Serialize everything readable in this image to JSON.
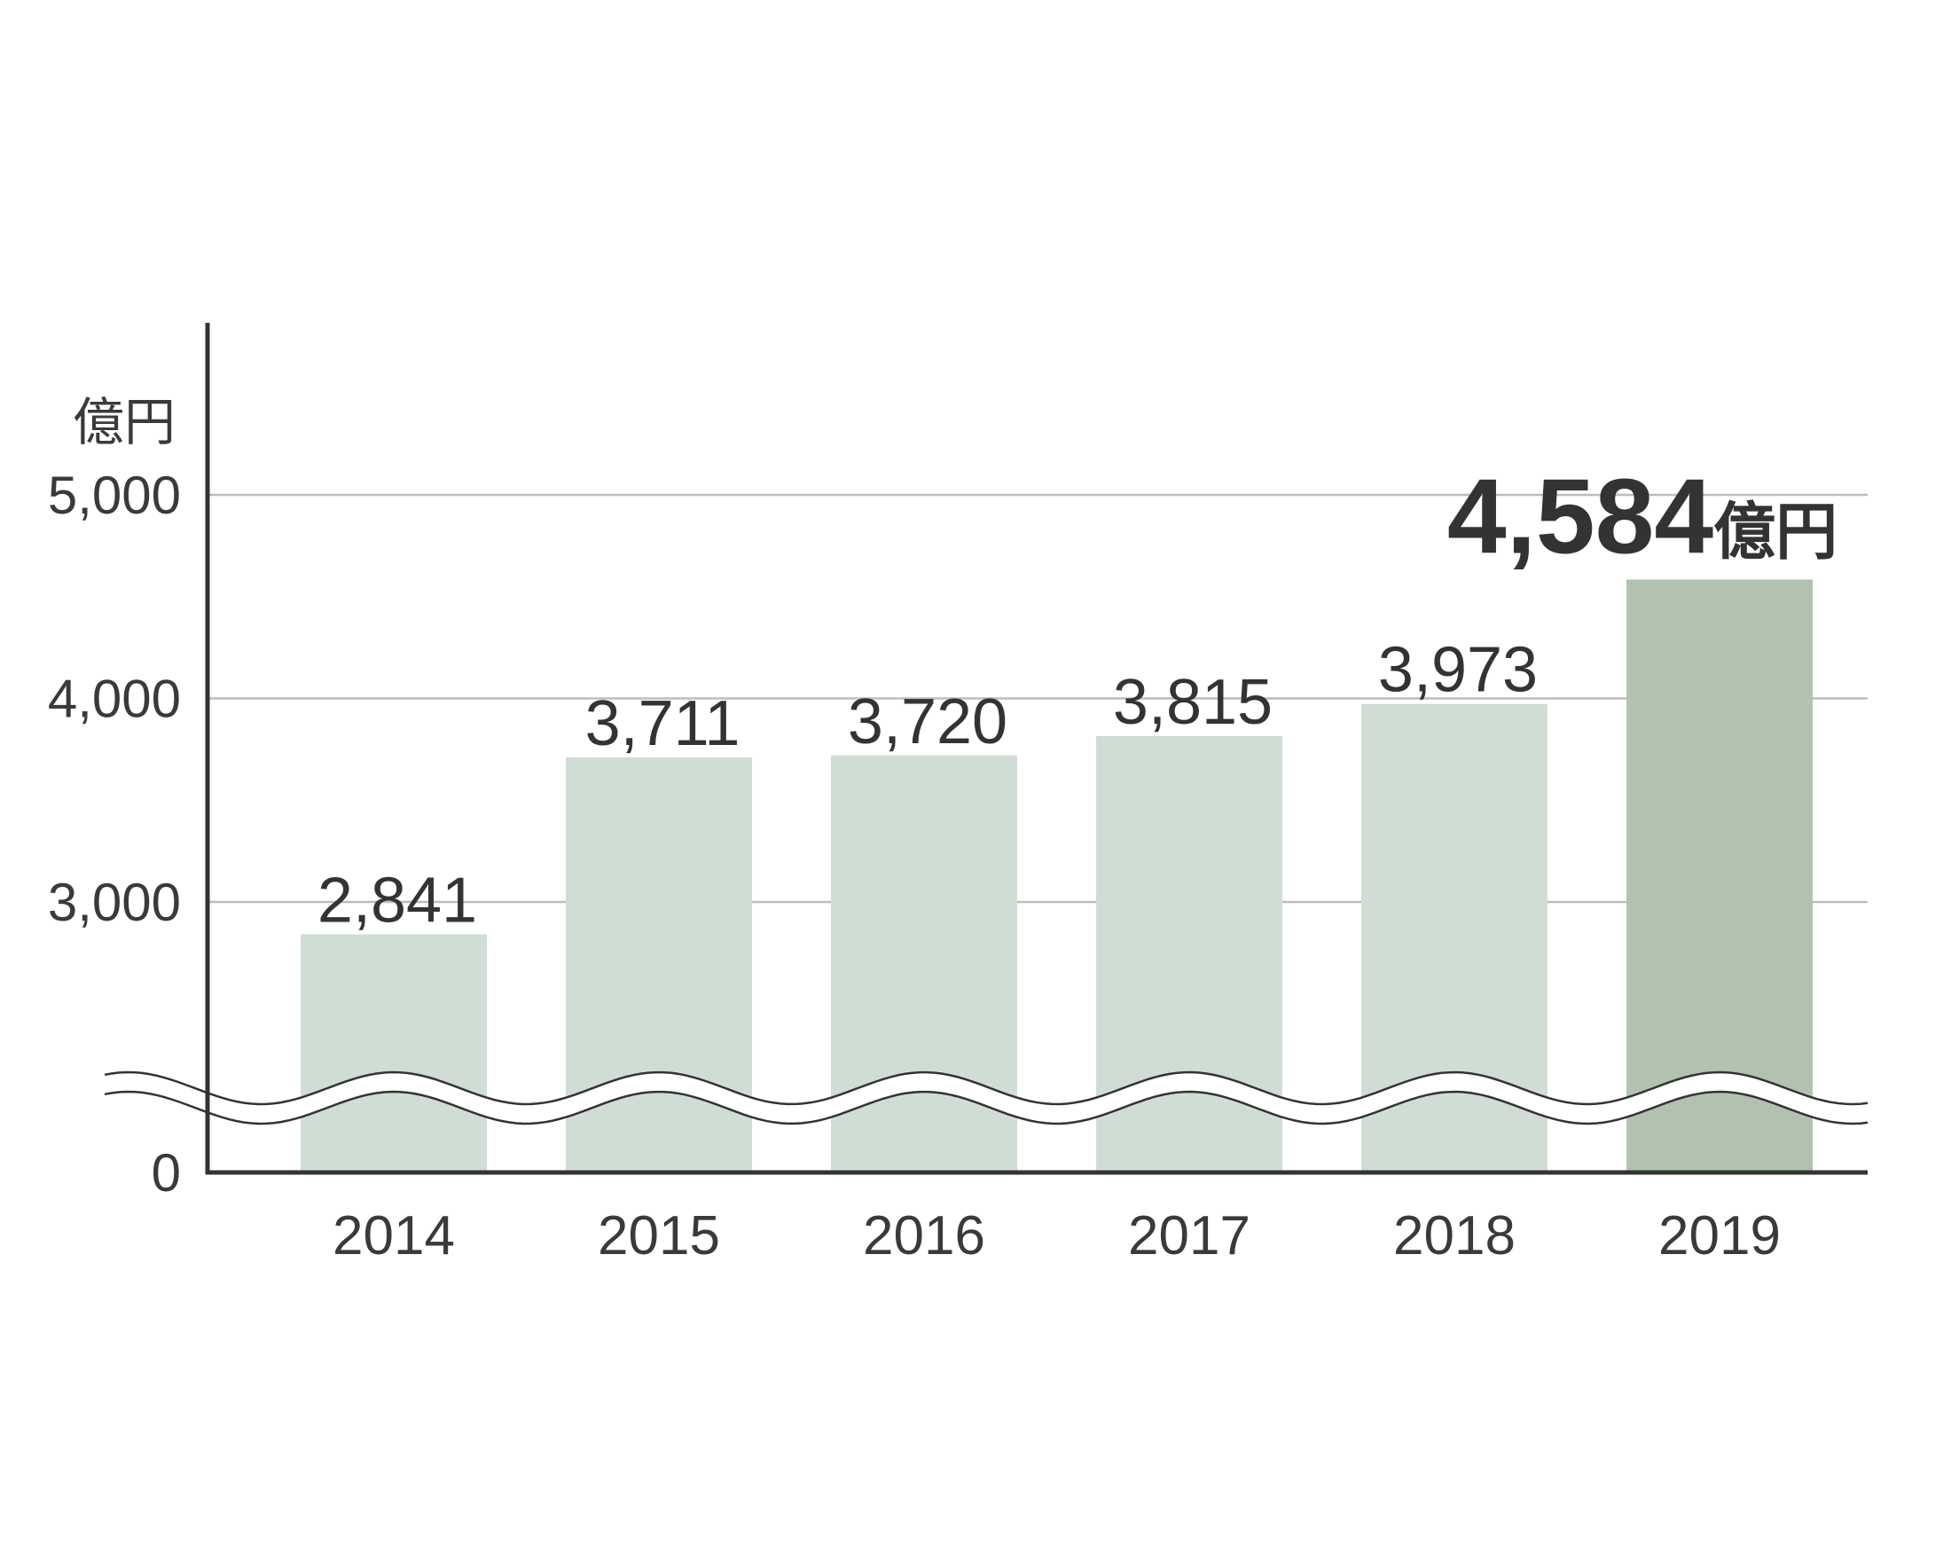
{
  "chart_data": {
    "type": "bar",
    "unit_label": "億円",
    "categories": [
      "2014",
      "2015",
      "2016",
      "2017",
      "2018",
      "2019"
    ],
    "values": [
      2841,
      3711,
      3720,
      3815,
      3973,
      4584
    ],
    "value_labels": [
      "2,841",
      "3,711",
      "3,720",
      "3,815",
      "3,973",
      "4,584"
    ],
    "highlight_index": 5,
    "highlight_unit": "億円",
    "yticks": [
      {
        "value": 0,
        "label": "0"
      },
      {
        "value": 3000,
        "label": "3,000"
      },
      {
        "value": 4000,
        "label": "4,000"
      },
      {
        "value": 5000,
        "label": "5,000"
      }
    ],
    "axis_break": true,
    "grid": true,
    "colors": {
      "bar": "#d0ddd5",
      "bar_highlight": "#b1c3b0",
      "axis": "#333333",
      "grid": "#bdbdbd"
    }
  }
}
